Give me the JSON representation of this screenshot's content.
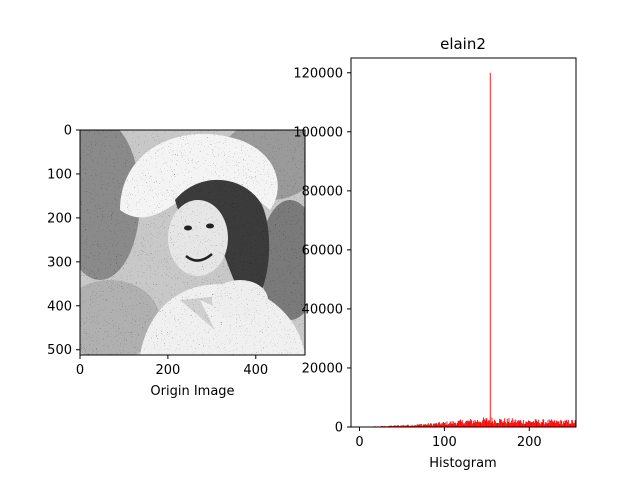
{
  "chart_data": [
    {
      "type": "image",
      "xlabel": "Origin Image",
      "xticks": [
        0,
        200,
        400
      ],
      "yticks": [
        0,
        100,
        200,
        300,
        400,
        500
      ],
      "xlim": [
        0,
        512
      ],
      "ylim": [
        512,
        0
      ],
      "description_hidden": true
    },
    {
      "type": "bar",
      "title": "elain2",
      "xlabel": "Histogram",
      "xticks": [
        0,
        100,
        200
      ],
      "yticks": [
        0,
        20000,
        40000,
        60000,
        80000,
        100000,
        120000
      ],
      "xlim": [
        -10,
        255
      ],
      "ylim": [
        0,
        125000
      ],
      "bar_color": "#ff0000",
      "spike": {
        "x": 154,
        "value": 120000
      },
      "background_profile": [
        [
          0,
          60
        ],
        [
          20,
          200
        ],
        [
          40,
          450
        ],
        [
          60,
          700
        ],
        [
          80,
          1000
        ],
        [
          100,
          1400
        ],
        [
          120,
          1900
        ],
        [
          140,
          2300
        ],
        [
          154,
          2600
        ],
        [
          170,
          2300
        ],
        [
          190,
          2100
        ],
        [
          210,
          2000
        ],
        [
          230,
          1900
        ],
        [
          255,
          1900
        ]
      ]
    }
  ]
}
